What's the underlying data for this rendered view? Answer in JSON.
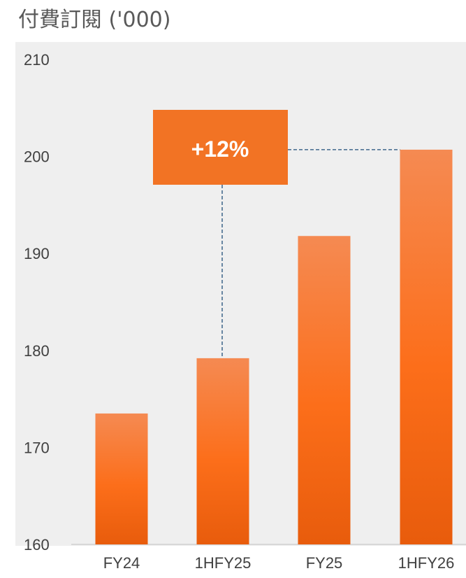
{
  "chart_data": {
    "type": "bar",
    "title": "付費訂閱 ('000)",
    "categories": [
      "FY24",
      "1HFY25",
      "FY25",
      "1HFY26"
    ],
    "values": [
      173.5,
      179.2,
      191.8,
      200.7
    ],
    "ylim": [
      160,
      210
    ],
    "yticks": [
      160,
      170,
      180,
      190,
      200,
      210
    ],
    "grid": false,
    "annotation": {
      "text": "+12%",
      "from": "1HFY25",
      "to": "1HFY26"
    },
    "colors": {
      "bar_top": "#f58a52",
      "bar_mid": "#fc6e1a",
      "bar_bottom": "#e85c0c",
      "callout": "#f27324",
      "plot_bg": "#efefef",
      "connector": "#1f4e79"
    }
  }
}
